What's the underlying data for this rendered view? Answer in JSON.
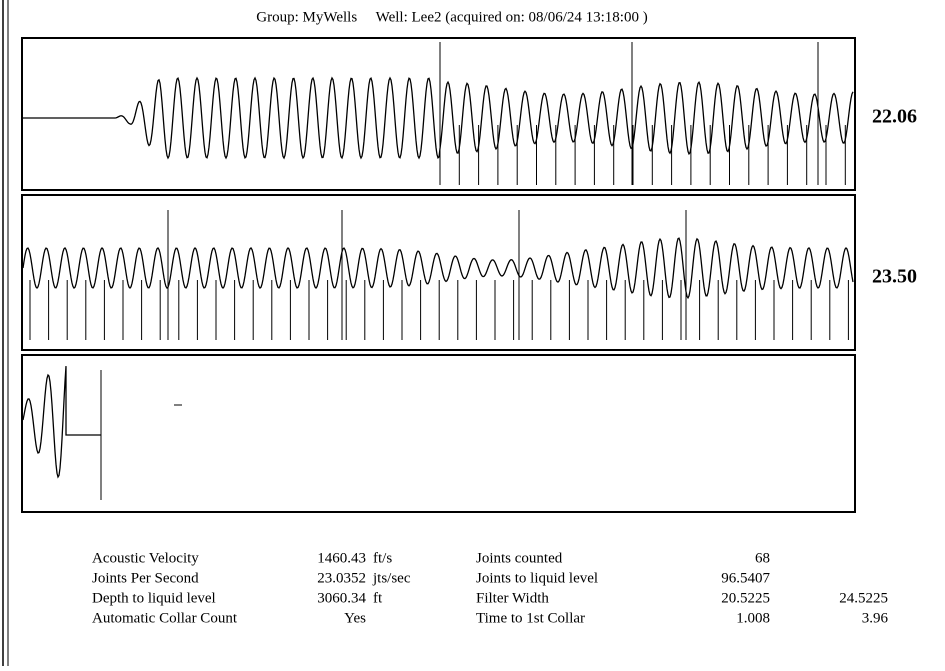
{
  "header": {
    "title": "Group: MyWells     Well: Lee2 (acquired on: 08/06/24 13:18:00 )"
  },
  "panels": [
    {
      "label": "22.06"
    },
    {
      "label": "23.50"
    }
  ],
  "table": {
    "rows": [
      {
        "label": "Acoustic Velocity",
        "value": "1460.43",
        "unit": "ft/s",
        "label2": "Joints counted",
        "value2": "68"
      },
      {
        "label": "Joints Per Second",
        "value": "23.0352",
        "unit": "jts/sec",
        "label2": "Joints to liquid level",
        "value2": "96.5407"
      },
      {
        "label": "Depth to liquid level",
        "value": "3060.34",
        "unit": "ft",
        "label2": "Filter Width",
        "value2": "20.5225",
        "value3": "24.5225"
      },
      {
        "label": "Automatic Collar Count",
        "value": "Yes",
        "label2": "Time to 1st Collar",
        "value2": "1.008",
        "value3": "3.96"
      }
    ]
  }
}
